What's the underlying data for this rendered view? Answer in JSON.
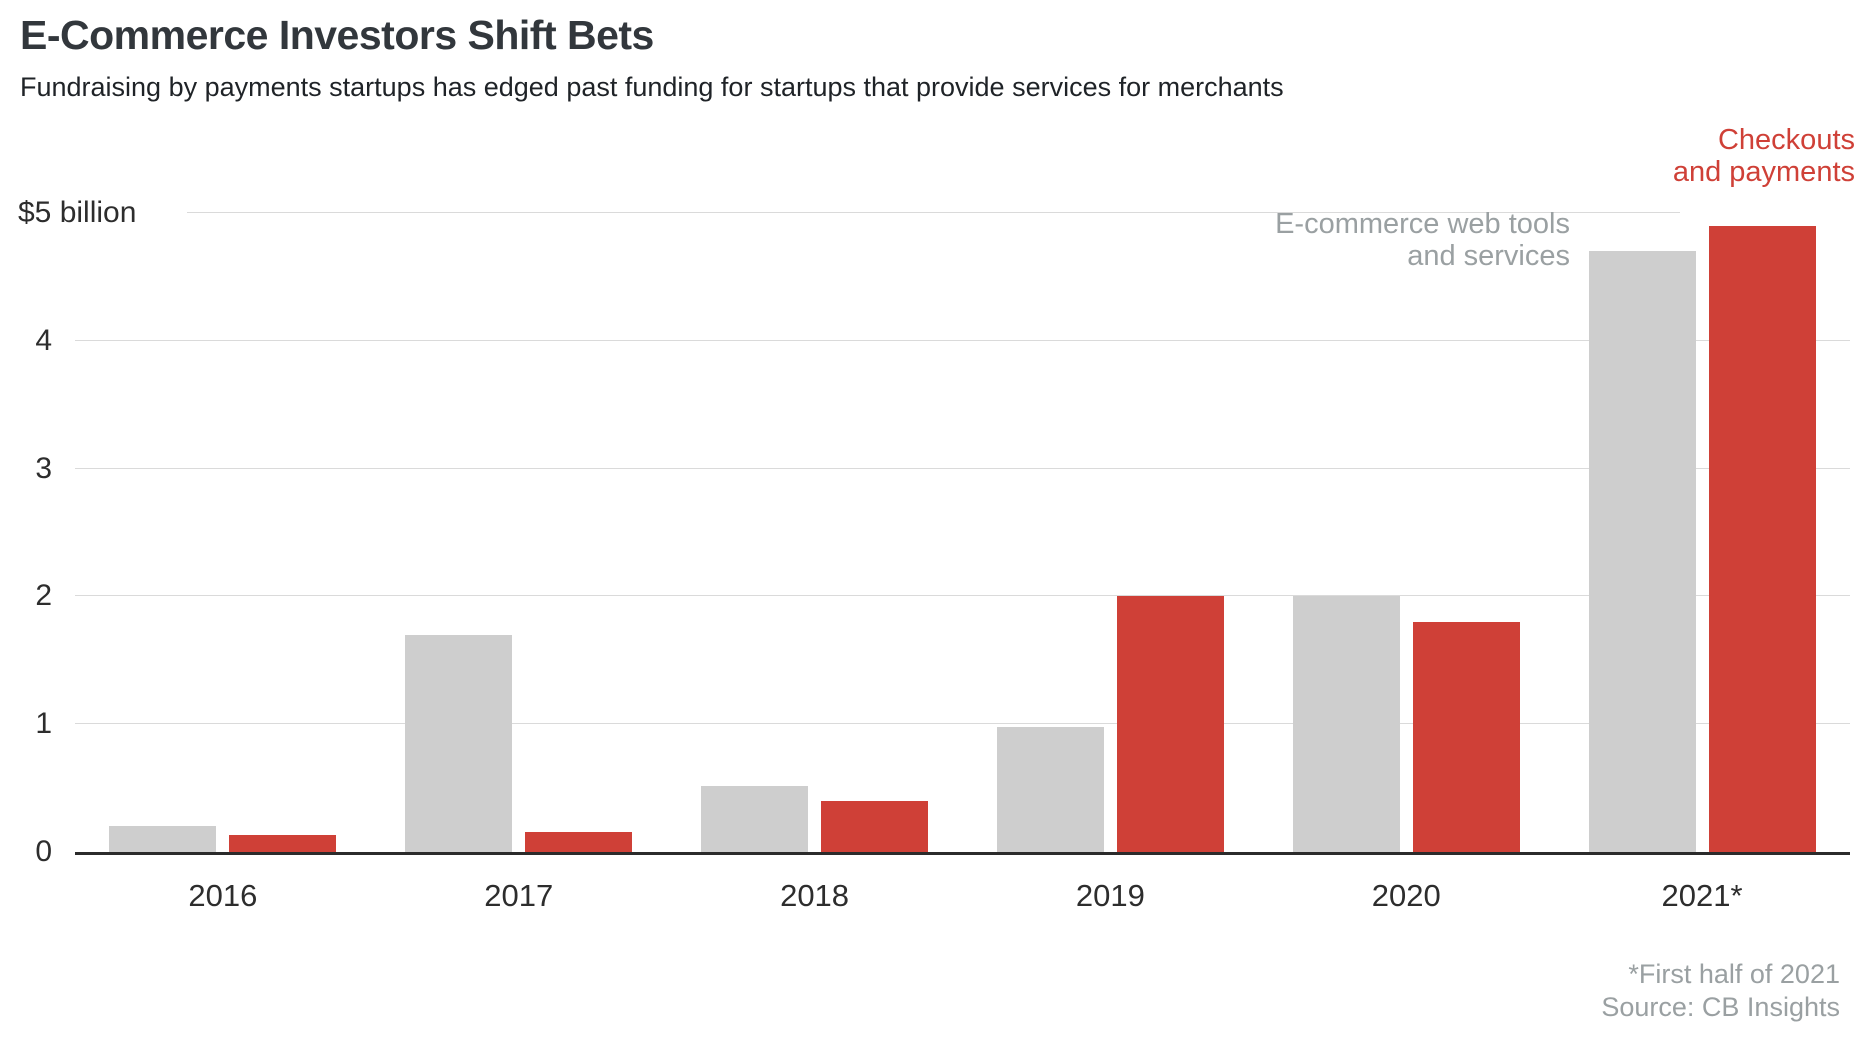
{
  "chart_data": {
    "type": "bar",
    "title": "E-Commerce Investors Shift Bets",
    "subtitle": "Fundraising by payments startups has edged past funding for startups that provide services for merchants",
    "categories": [
      "2016",
      "2017",
      "2018",
      "2019",
      "2020",
      "2021*"
    ],
    "series": [
      {
        "key": "web-tools",
        "name": "E-commerce web tools and services",
        "color": "#cecece",
        "values": [
          0.2,
          1.7,
          0.52,
          0.98,
          2.0,
          4.7
        ]
      },
      {
        "key": "payments",
        "name": "Checkouts and payments",
        "color": "#cf4037",
        "values": [
          0.13,
          0.16,
          0.4,
          2.0,
          1.8,
          4.9
        ]
      }
    ],
    "ylabel": "$ billion",
    "ylim": [
      0,
      5
    ],
    "yticks": [
      {
        "value": 0,
        "label": "0"
      },
      {
        "value": 1,
        "label": "1"
      },
      {
        "value": 2,
        "label": "2"
      },
      {
        "value": 3,
        "label": "3"
      },
      {
        "value": 4,
        "label": "4"
      },
      {
        "value": 5,
        "label": "$5 billion"
      }
    ],
    "grid": "horizontal",
    "legend_position": "in-chart annotations (right side)"
  },
  "annotations": {
    "payments": {
      "line1": "Checkouts",
      "line2": "and payments",
      "color": "#cf4037"
    },
    "web_tools": {
      "line1": "E-commerce web tools",
      "line2": "and services",
      "color": "#9aa0a2"
    }
  },
  "footer": {
    "footnote": "*First half of 2021",
    "source": "Source: CB Insights"
  },
  "colors": {
    "bar_gray": "#cecece",
    "bar_red": "#cf4037",
    "gridline": "#dadada",
    "baseline": "#2b2b2b",
    "title_text": "#32373c",
    "muted_text": "#9aa0a2"
  }
}
